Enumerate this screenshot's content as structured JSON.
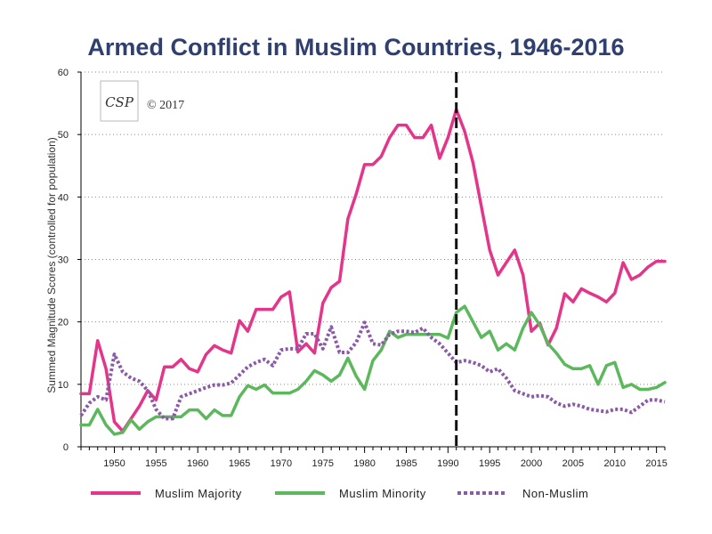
{
  "chart_data": {
    "type": "line",
    "title": "Armed Conflict in Muslim Countries, 1946-2016",
    "ylabel": "Summed Magnitude Scores (controlled for population)",
    "xlabel": "",
    "xlim": [
      1946,
      2016
    ],
    "ylim": [
      0,
      60
    ],
    "yticks": [
      0,
      10,
      20,
      30,
      40,
      50,
      60
    ],
    "xticks": [
      1950,
      1955,
      1960,
      1965,
      1970,
      1975,
      1980,
      1985,
      1990,
      1995,
      2000,
      2005,
      2010,
      2015
    ],
    "grid": "horizontal dotted",
    "reference_line": {
      "x": 1991,
      "style": "dashed"
    },
    "legend_placement": "bottom",
    "logo": {
      "text": "CSP",
      "copyright": "© 2017"
    },
    "x": [
      1946,
      1947,
      1948,
      1949,
      1950,
      1951,
      1952,
      1953,
      1954,
      1955,
      1956,
      1957,
      1958,
      1959,
      1960,
      1961,
      1962,
      1963,
      1964,
      1965,
      1966,
      1967,
      1968,
      1969,
      1970,
      1971,
      1972,
      1973,
      1974,
      1975,
      1976,
      1977,
      1978,
      1979,
      1980,
      1981,
      1982,
      1983,
      1984,
      1985,
      1986,
      1987,
      1988,
      1989,
      1990,
      1991,
      1992,
      1993,
      1994,
      1995,
      1996,
      1997,
      1998,
      1999,
      2000,
      2001,
      2002,
      2003,
      2004,
      2005,
      2006,
      2007,
      2008,
      2009,
      2010,
      2011,
      2012,
      2013,
      2014,
      2015,
      2016
    ],
    "series": [
      {
        "name": "Muslim Majority",
        "color": "#e5358b",
        "values": [
          8.5,
          8.5,
          17,
          12.5,
          4,
          2.5,
          4.5,
          6.5,
          9,
          7.5,
          12.8,
          12.8,
          14,
          12.5,
          12,
          14.8,
          16.2,
          15.5,
          15,
          20.2,
          18.5,
          22,
          22,
          22,
          24,
          24.8,
          15.2,
          16.5,
          15,
          23,
          25.5,
          26.5,
          36.5,
          40.5,
          45.2,
          45.2,
          46.5,
          49.5,
          51.5,
          51.5,
          49.5,
          49.5,
          51.5,
          46.2,
          49.5,
          54,
          50.5,
          45.5,
          38.5,
          31.5,
          27.5,
          29.5,
          31.5,
          27.5,
          18.5,
          19.8,
          16.3,
          19,
          24.5,
          23.2,
          25.3,
          24.6,
          24,
          23.2,
          24.6,
          29.5,
          26.8,
          27.5,
          28.8,
          29.7,
          29.7
        ]
      },
      {
        "name": "Muslim Minority",
        "color": "#5cb85c",
        "values": [
          3.5,
          3.5,
          6,
          3.5,
          2,
          2.3,
          4.3,
          2.8,
          4,
          4.8,
          4.8,
          4.8,
          4.8,
          5.9,
          5.9,
          4.5,
          5.9,
          5,
          5,
          8,
          9.8,
          9.2,
          9.9,
          8.6,
          8.6,
          8.6,
          9.2,
          10.5,
          12.2,
          11.5,
          10.5,
          11.5,
          14.2,
          11.3,
          9.2,
          13.8,
          15.5,
          18.5,
          17.5,
          18,
          18,
          18,
          18,
          18,
          17.4,
          21.5,
          22.5,
          20,
          17.5,
          18.5,
          15.5,
          16.5,
          15.5,
          19,
          21.5,
          19.5,
          16.5,
          15,
          13.2,
          12.5,
          12.5,
          13,
          10,
          13,
          13.5,
          9.5,
          10,
          9.2,
          9.2,
          9.5,
          10.3
        ]
      },
      {
        "name": "Non-Muslim",
        "color": "#8a5aa8",
        "values": [
          5,
          7,
          8,
          7.5,
          14.8,
          12,
          11,
          10.5,
          9,
          6,
          4.5,
          4.5,
          8,
          8.5,
          9,
          9.5,
          9.9,
          9.9,
          10.2,
          11.5,
          12.8,
          13.5,
          14,
          13,
          15.5,
          15.7,
          15.7,
          18.1,
          18.1,
          15.7,
          19.2,
          15.1,
          15.1,
          16.7,
          19.9,
          16.5,
          16.3,
          18,
          18.5,
          18.5,
          18.3,
          19,
          17.5,
          16.5,
          15,
          13.5,
          13.8,
          13.5,
          13,
          12,
          12.5,
          11,
          9,
          8.5,
          8,
          8.2,
          8,
          7,
          6.5,
          6.8,
          6.5,
          6,
          5.8,
          5.6,
          6,
          6,
          5.5,
          6.5,
          7.5,
          7.5,
          7.2
        ]
      }
    ]
  }
}
